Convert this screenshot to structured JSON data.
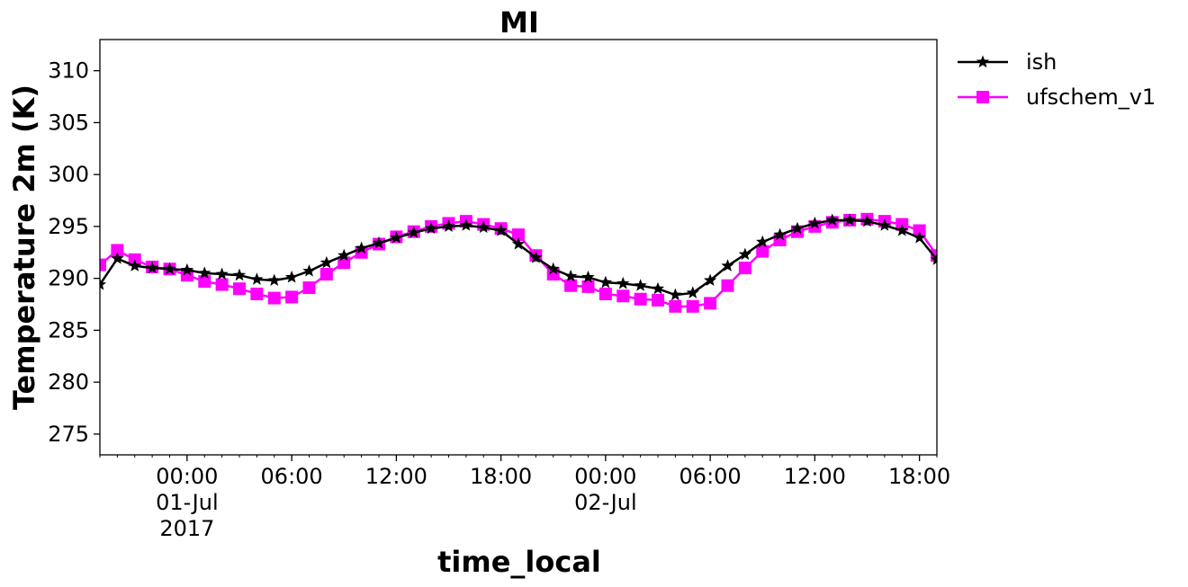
{
  "chart_data": {
    "type": "line",
    "title": "MI",
    "xlabel": "time_local",
    "ylabel": "Temperature 2m (K)",
    "ylim": [
      273,
      313
    ],
    "xlim": [
      "2017-06-30T19:00",
      "2017-07-02T19:00"
    ],
    "y_ticks": [
      275,
      280,
      285,
      290,
      295,
      300,
      305,
      310
    ],
    "x_ticks": [
      {
        "t": "2017-07-01T00:00",
        "lines": [
          "00:00",
          "01-Jul",
          "2017"
        ]
      },
      {
        "t": "2017-07-01T06:00",
        "lines": [
          "06:00"
        ]
      },
      {
        "t": "2017-07-01T12:00",
        "lines": [
          "12:00"
        ]
      },
      {
        "t": "2017-07-01T18:00",
        "lines": [
          "18:00"
        ]
      },
      {
        "t": "2017-07-02T00:00",
        "lines": [
          "00:00",
          "02-Jul"
        ]
      },
      {
        "t": "2017-07-02T06:00",
        "lines": [
          "06:00"
        ]
      },
      {
        "t": "2017-07-02T12:00",
        "lines": [
          "12:00"
        ]
      },
      {
        "t": "2017-07-02T18:00",
        "lines": [
          "18:00"
        ]
      }
    ],
    "grid": false,
    "legend_position": "outside-top-right",
    "x": [
      "2017-06-30T19:00",
      "2017-06-30T20:00",
      "2017-06-30T21:00",
      "2017-06-30T22:00",
      "2017-06-30T23:00",
      "2017-07-01T00:00",
      "2017-07-01T01:00",
      "2017-07-01T02:00",
      "2017-07-01T03:00",
      "2017-07-01T04:00",
      "2017-07-01T05:00",
      "2017-07-01T06:00",
      "2017-07-01T07:00",
      "2017-07-01T08:00",
      "2017-07-01T09:00",
      "2017-07-01T10:00",
      "2017-07-01T11:00",
      "2017-07-01T12:00",
      "2017-07-01T13:00",
      "2017-07-01T14:00",
      "2017-07-01T15:00",
      "2017-07-01T16:00",
      "2017-07-01T17:00",
      "2017-07-01T18:00",
      "2017-07-01T19:00",
      "2017-07-01T20:00",
      "2017-07-01T21:00",
      "2017-07-01T22:00",
      "2017-07-01T23:00",
      "2017-07-02T00:00",
      "2017-07-02T01:00",
      "2017-07-02T02:00",
      "2017-07-02T03:00",
      "2017-07-02T04:00",
      "2017-07-02T05:00",
      "2017-07-02T06:00",
      "2017-07-02T07:00",
      "2017-07-02T08:00",
      "2017-07-02T09:00",
      "2017-07-02T10:00",
      "2017-07-02T11:00",
      "2017-07-02T12:00",
      "2017-07-02T13:00",
      "2017-07-02T14:00",
      "2017-07-02T15:00",
      "2017-07-02T16:00",
      "2017-07-02T17:00",
      "2017-07-02T18:00",
      "2017-07-02T19:00"
    ],
    "series": [
      {
        "name": "ish",
        "color": "#000000",
        "marker": "star",
        "values": [
          289.4,
          291.9,
          291.2,
          291.0,
          290.9,
          290.8,
          290.5,
          290.4,
          290.3,
          289.9,
          289.8,
          290.1,
          290.7,
          291.5,
          292.2,
          292.9,
          293.4,
          293.9,
          294.4,
          294.8,
          295.0,
          295.1,
          294.9,
          294.6,
          293.3,
          292.0,
          290.9,
          290.2,
          290.1,
          289.6,
          289.5,
          289.3,
          289.0,
          288.4,
          288.6,
          289.8,
          291.2,
          292.3,
          293.5,
          294.2,
          294.8,
          295.3,
          295.6,
          295.6,
          295.5,
          295.1,
          294.6,
          293.9,
          291.8
        ]
      },
      {
        "name": "ufschem_v1",
        "color": "#ff00ff",
        "marker": "square",
        "values": [
          291.3,
          292.7,
          291.8,
          291.1,
          290.9,
          290.3,
          289.7,
          289.4,
          289.0,
          288.5,
          288.1,
          288.2,
          289.1,
          290.4,
          291.5,
          292.5,
          293.3,
          294.0,
          294.5,
          295.0,
          295.3,
          295.5,
          295.2,
          294.8,
          294.2,
          292.2,
          290.4,
          289.3,
          289.2,
          288.5,
          288.3,
          288.0,
          287.9,
          287.3,
          287.3,
          287.6,
          289.3,
          291.0,
          292.6,
          293.7,
          294.5,
          295.0,
          295.4,
          295.6,
          295.7,
          295.5,
          295.2,
          294.6,
          292.2
        ]
      }
    ]
  }
}
